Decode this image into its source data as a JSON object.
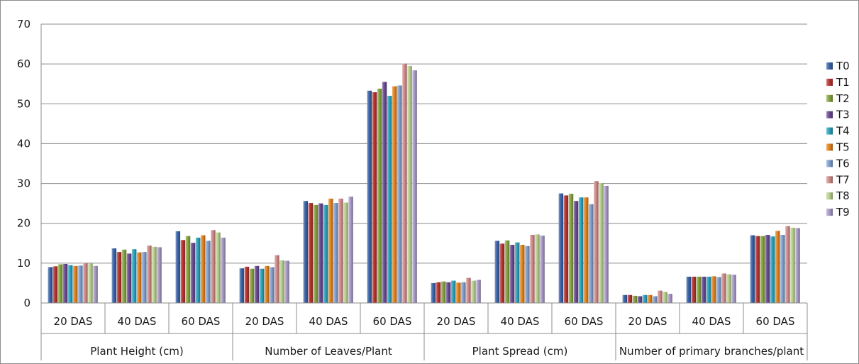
{
  "chart_data": {
    "type": "bar",
    "ylim": [
      0,
      70
    ],
    "yticks": [
      0,
      10,
      20,
      30,
      40,
      50,
      60,
      70
    ],
    "grid": true,
    "legend_position": "right",
    "groups": [
      {
        "label": "Plant Height (cm)",
        "categories": [
          "20 DAS",
          "40 DAS",
          "60 DAS"
        ]
      },
      {
        "label": "Number of Leaves/Plant",
        "categories": [
          "20 DAS",
          "40 DAS",
          "60 DAS"
        ]
      },
      {
        "label": "Plant Spread (cm)",
        "categories": [
          "20 DAS",
          "40 DAS",
          "60 DAS"
        ]
      },
      {
        "label": "Number of primary branches/plant",
        "categories": [
          "20 DAS",
          "40 DAS",
          "60 DAS"
        ]
      }
    ],
    "series": [
      {
        "name": "T0",
        "color": "#3a64a8",
        "values": [
          9.0,
          13.7,
          18.0,
          8.7,
          25.6,
          53.3,
          5.0,
          15.6,
          27.5,
          2.0,
          6.6,
          17.0
        ]
      },
      {
        "name": "T1",
        "color": "#b53532",
        "values": [
          9.2,
          12.8,
          15.8,
          9.1,
          25.1,
          52.9,
          5.2,
          14.9,
          27.0,
          2.0,
          6.6,
          16.8
        ]
      },
      {
        "name": "T2",
        "color": "#86a43f",
        "values": [
          9.7,
          13.4,
          16.8,
          8.6,
          24.6,
          53.8,
          5.4,
          15.7,
          27.4,
          1.8,
          6.6,
          16.8
        ]
      },
      {
        "name": "T3",
        "color": "#6a4a92",
        "values": [
          9.8,
          12.4,
          15.1,
          9.3,
          25.0,
          55.5,
          5.2,
          14.6,
          25.6,
          1.7,
          6.6,
          17.1
        ]
      },
      {
        "name": "T4",
        "color": "#2ba2bb",
        "values": [
          9.5,
          13.5,
          16.4,
          8.6,
          24.6,
          52.0,
          5.6,
          15.2,
          26.5,
          2.0,
          6.6,
          16.7
        ]
      },
      {
        "name": "T5",
        "color": "#e2821e",
        "values": [
          9.3,
          12.7,
          17.0,
          9.3,
          26.2,
          54.4,
          5.1,
          14.6,
          26.5,
          2.0,
          6.7,
          18.1
        ]
      },
      {
        "name": "T6",
        "color": "#7f9fcf",
        "values": [
          9.4,
          12.8,
          15.6,
          9.0,
          25.1,
          54.6,
          5.2,
          14.3,
          24.8,
          1.7,
          6.5,
          17.1
        ]
      },
      {
        "name": "T7",
        "color": "#d08a88",
        "values": [
          10.0,
          14.4,
          18.3,
          12.0,
          26.2,
          60.1,
          6.3,
          17.1,
          30.6,
          3.1,
          7.4,
          19.3
        ]
      },
      {
        "name": "T8",
        "color": "#b7cf8c",
        "values": [
          9.9,
          14.1,
          17.7,
          10.7,
          25.2,
          59.5,
          5.6,
          17.2,
          30.1,
          2.8,
          7.2,
          18.9
        ]
      },
      {
        "name": "T9",
        "color": "#a899c7",
        "values": [
          9.3,
          14.0,
          16.4,
          10.6,
          26.7,
          58.4,
          5.8,
          16.9,
          29.4,
          2.3,
          7.1,
          18.8
        ]
      }
    ]
  }
}
